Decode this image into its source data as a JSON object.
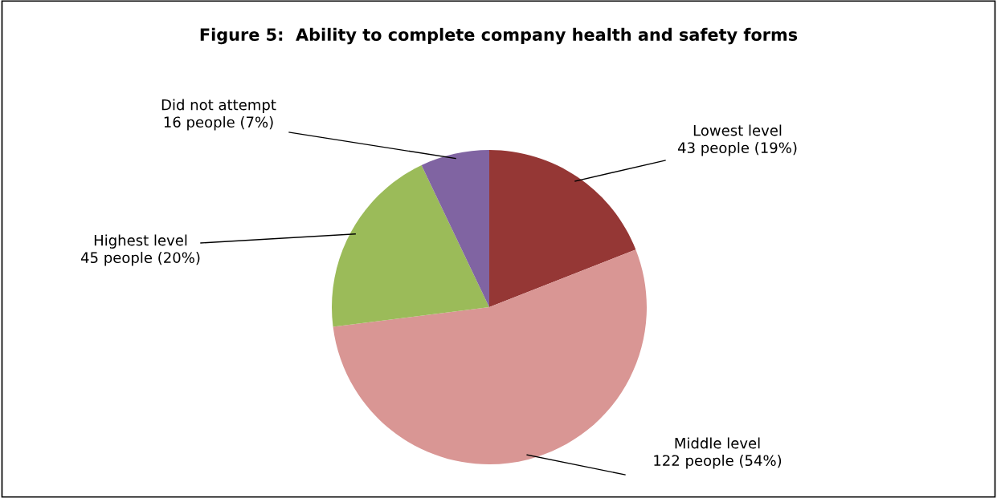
{
  "chart_data": {
    "type": "pie",
    "title": "Figure 5:  Ability to complete company health and safety forms",
    "categories": [
      "Lowest level",
      "Middle level",
      "Highest level",
      "Did not attempt"
    ],
    "values": [
      43,
      122,
      45,
      16
    ],
    "colors": [
      "#953735",
      "#d99694",
      "#9bbb59",
      "#8064a2"
    ],
    "value_labels": [
      "43 people (19%)",
      "122 people (54%)",
      "45 people (20%)",
      "16 people (7%)"
    ]
  }
}
